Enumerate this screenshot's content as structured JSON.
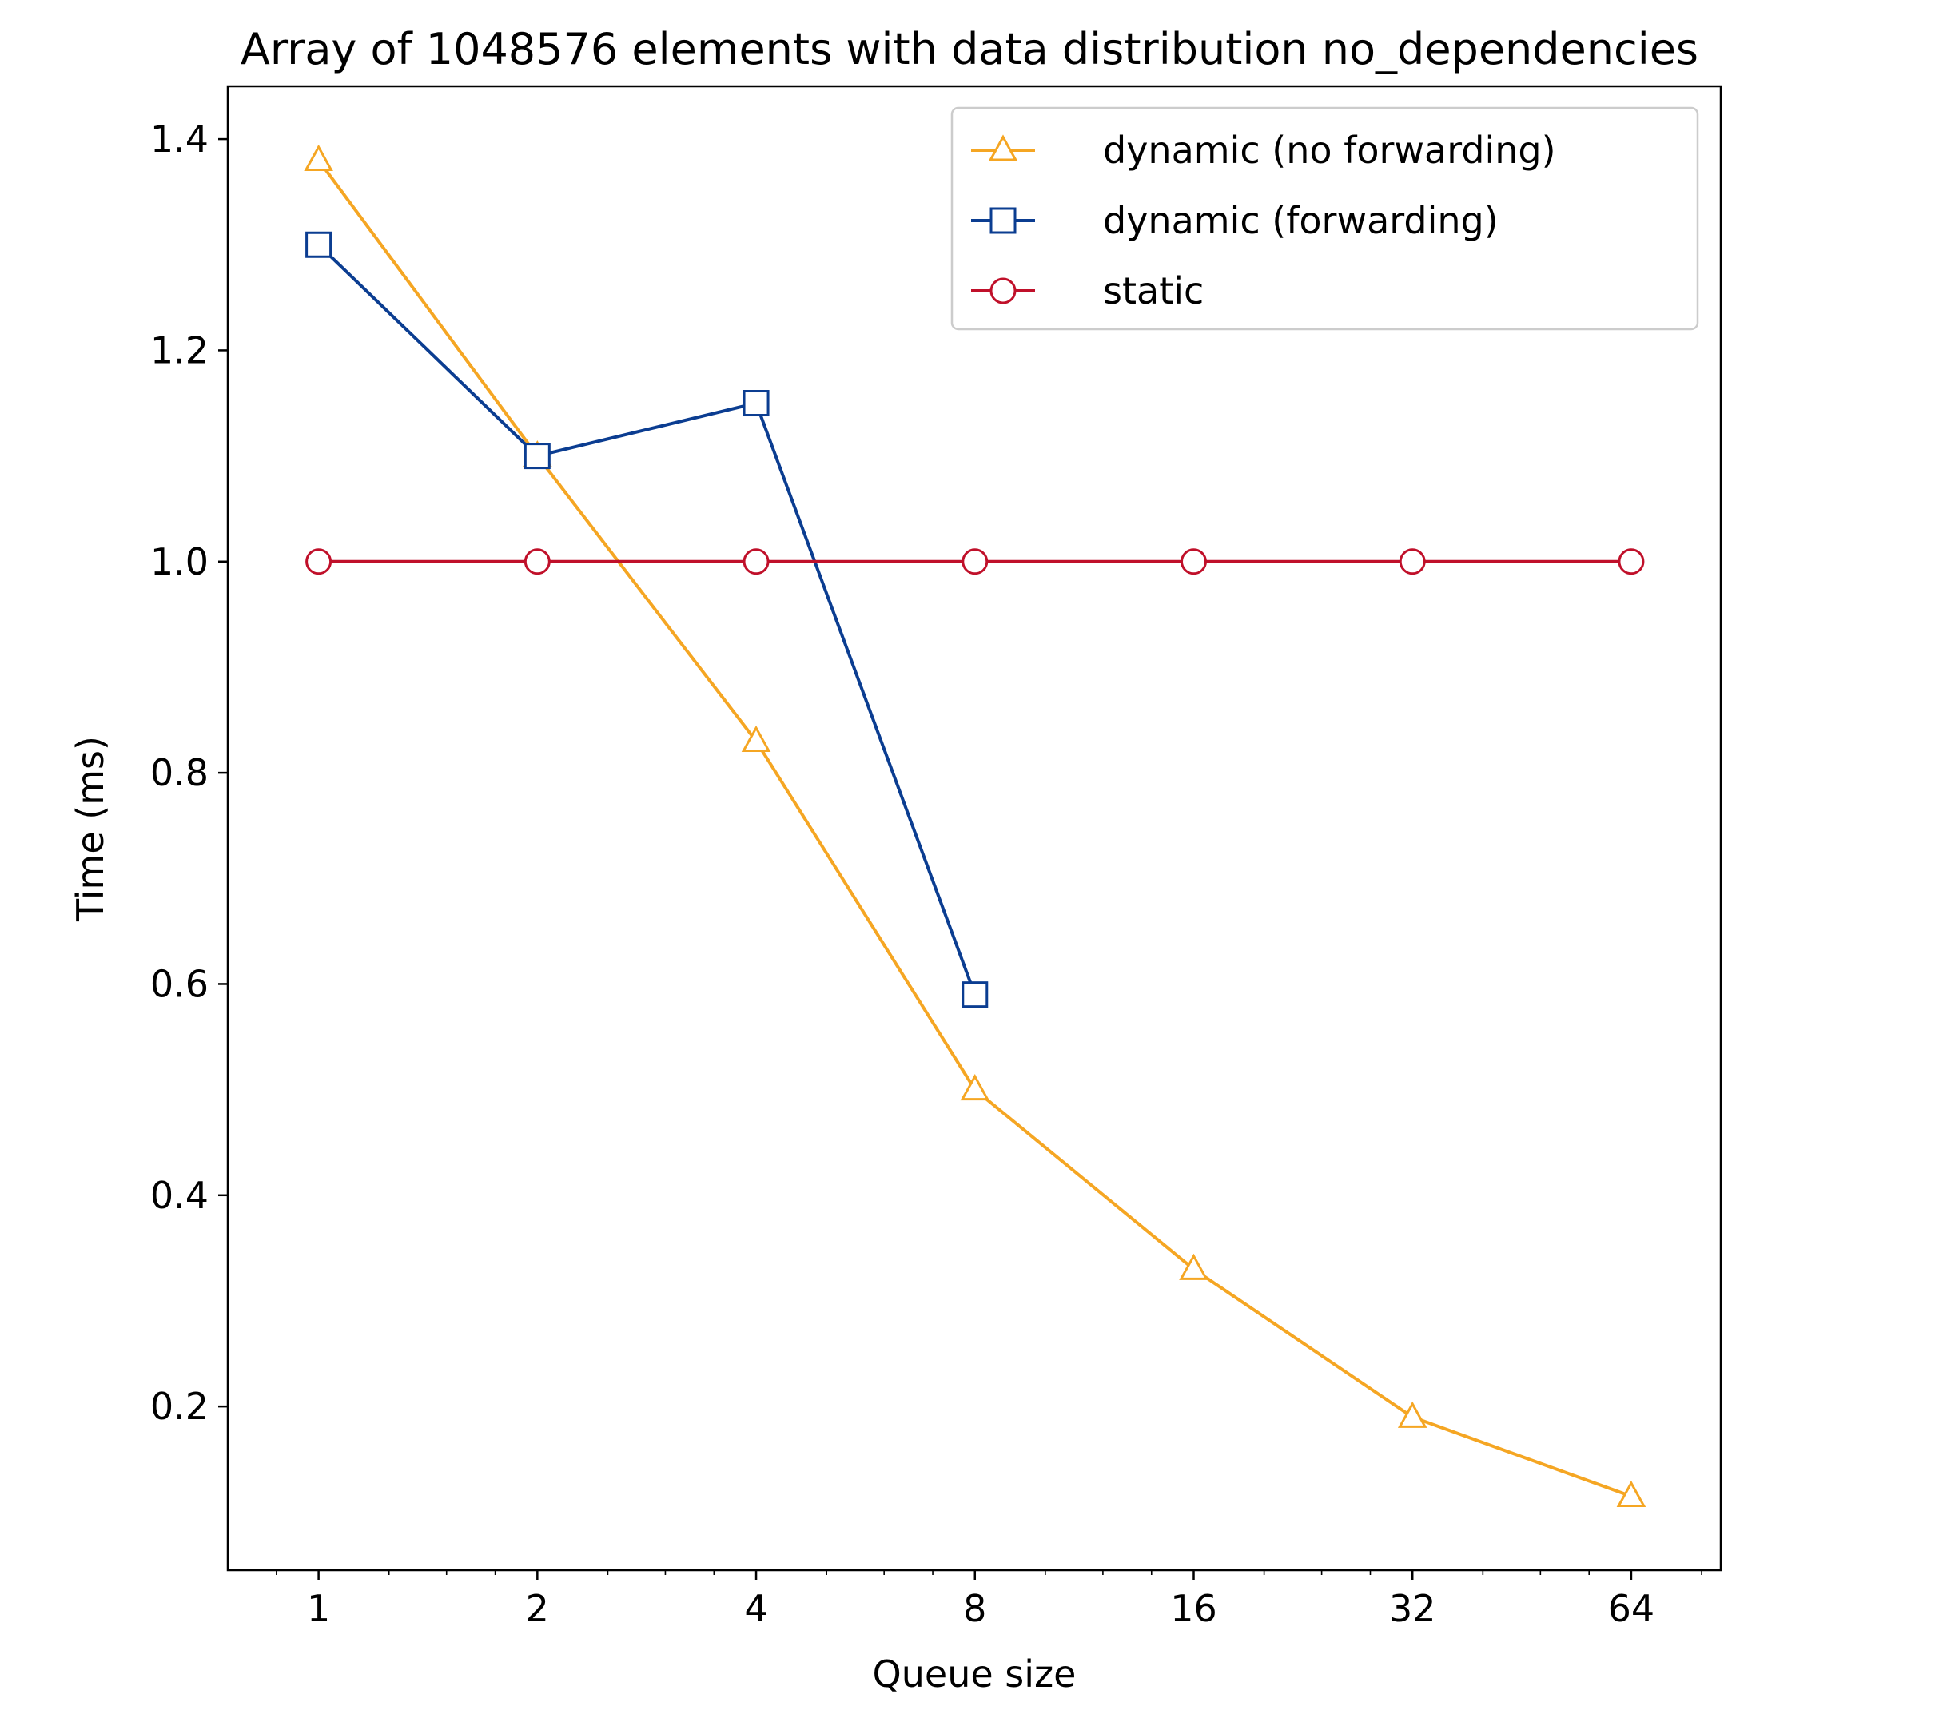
{
  "chart_data": {
    "type": "line",
    "title": "Array of 1048576 elements with data distribution no_dependencies",
    "xlabel": "Queue size",
    "ylabel": "Time (ms)",
    "x_scale": "log2",
    "x": [
      1,
      2,
      4,
      8,
      16,
      32,
      64
    ],
    "x_tick_labels": [
      "1",
      "2",
      "4",
      "8",
      "16",
      "32",
      "64"
    ],
    "y_ticks": [
      0.2,
      0.4,
      0.6,
      0.8,
      1.0,
      1.2,
      1.4
    ],
    "y_tick_labels": [
      "0.2",
      "0.4",
      "0.6",
      "0.8",
      "1.0",
      "1.2",
      "1.4"
    ],
    "xlim": [
      0.75,
      85
    ],
    "ylim": [
      0.045,
      1.45
    ],
    "grid": false,
    "legend_position": "top-right",
    "series": [
      {
        "name": "dynamic (no forwarding)",
        "color": "#F5A623",
        "marker": "triangle",
        "x": [
          1,
          2,
          4,
          8,
          16,
          32,
          64
        ],
        "values": [
          1.38,
          1.1,
          0.83,
          0.5,
          0.33,
          0.19,
          0.115
        ]
      },
      {
        "name": "dynamic (forwarding)",
        "color": "#0B3D91",
        "marker": "square",
        "x": [
          1,
          2,
          4,
          8
        ],
        "values": [
          1.3,
          1.1,
          1.15,
          0.59
        ]
      },
      {
        "name": "static",
        "color": "#C0102A",
        "marker": "circle",
        "x": [
          1,
          2,
          4,
          8,
          16,
          32,
          64
        ],
        "values": [
          1.0,
          1.0,
          1.0,
          1.0,
          1.0,
          1.0,
          1.0
        ]
      }
    ]
  }
}
